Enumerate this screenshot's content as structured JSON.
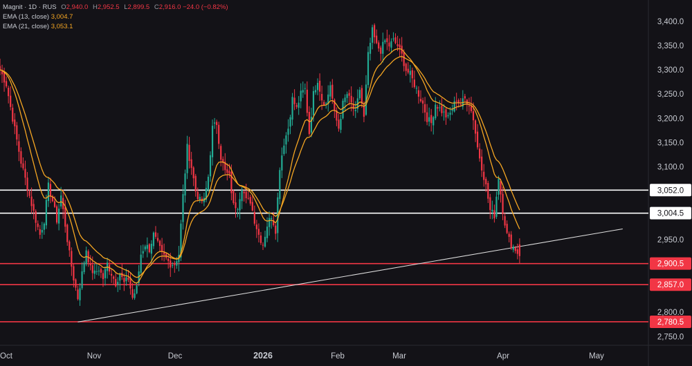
{
  "legend": {
    "symbol": "Magnit · 1D · RUS",
    "open_label": "O",
    "open": "2,940.0",
    "high_label": "H",
    "high": "2,952.5",
    "low_label": "L",
    "low": "2,899.5",
    "close_label": "C",
    "close": "2,916.0",
    "change": "−24.0 (−0.82%)",
    "ema13_label": "EMA (13, close)",
    "ema13_value": "3,004.7",
    "ema21_label": "EMA (21, close)",
    "ema21_value": "3,053.1"
  },
  "colors": {
    "background": "#131217",
    "up": "#22ab94",
    "down": "#f23645",
    "ema": "#f5a623",
    "resistance": "#ffffff",
    "support": "#f23645",
    "trendline": "#e0e0e0"
  },
  "chart_data": {
    "type": "candlestick",
    "title": "",
    "x_tick_labels": [
      "Oct",
      "Nov",
      "Dec",
      "2026",
      "Feb",
      "Mar",
      "Apr",
      "May"
    ],
    "y_tick_labels": [
      "3,400.0",
      "3,350.0",
      "3,300.0",
      "3,250.0",
      "3,200.0",
      "3,150.0",
      "3,100.0",
      "2,950.0",
      "2,800.0",
      "2,750.0"
    ],
    "y_ticks": [
      3400,
      3350,
      3300,
      3250,
      3200,
      3150,
      3100,
      2950,
      2800,
      2750
    ],
    "ylim": [
      2732,
      3444
    ],
    "horizontal_levels": [
      {
        "value": 3052.0,
        "label": "3,052.0",
        "kind": "resistance"
      },
      {
        "value": 3004.5,
        "label": "3,004.5",
        "kind": "resistance"
      },
      {
        "value": 2900.5,
        "label": "2,900.5",
        "kind": "support"
      },
      {
        "value": 2857.0,
        "label": "2,857.0",
        "kind": "support"
      },
      {
        "value": 2780.5,
        "label": "2,780.5",
        "kind": "support"
      }
    ],
    "trendline": {
      "from": {
        "index": 37,
        "price": 2780
      },
      "to": {
        "index": 296,
        "price": 2972
      }
    },
    "price_points": [
      [
        0,
        3300
      ],
      [
        3,
        3270
      ],
      [
        6,
        3200
      ],
      [
        10,
        3110
      ],
      [
        14,
        3040
      ],
      [
        17,
        2990
      ],
      [
        19,
        2960
      ],
      [
        21,
        2990
      ],
      [
        23,
        3060
      ],
      [
        25,
        3030
      ],
      [
        27,
        2990
      ],
      [
        29,
        3040
      ],
      [
        31,
        2980
      ],
      [
        33,
        2920
      ],
      [
        35,
        2870
      ],
      [
        37,
        2830
      ],
      [
        39,
        2880
      ],
      [
        41,
        2930
      ],
      [
        43,
        2890
      ],
      [
        45,
        2880
      ],
      [
        47,
        2890
      ],
      [
        49,
        2870
      ],
      [
        51,
        2900
      ],
      [
        53,
        2880
      ],
      [
        55,
        2860
      ],
      [
        57,
        2880
      ],
      [
        59,
        2860
      ],
      [
        61,
        2870
      ],
      [
        63,
        2830
      ],
      [
        65,
        2850
      ],
      [
        67,
        2920
      ],
      [
        69,
        2940
      ],
      [
        71,
        2930
      ],
      [
        73,
        2960
      ],
      [
        75,
        2940
      ],
      [
        77,
        2920
      ],
      [
        79,
        2910
      ],
      [
        81,
        2900
      ],
      [
        83,
        2900
      ],
      [
        85,
        2920
      ],
      [
        87,
        3040
      ],
      [
        89,
        3140
      ],
      [
        91,
        3100
      ],
      [
        93,
        3050
      ],
      [
        95,
        3030
      ],
      [
        97,
        3030
      ],
      [
        99,
        3080
      ],
      [
        101,
        3180
      ],
      [
        103,
        3190
      ],
      [
        105,
        3120
      ],
      [
        107,
        3090
      ],
      [
        109,
        3080
      ],
      [
        111,
        3020
      ],
      [
        113,
        3020
      ],
      [
        115,
        3060
      ],
      [
        117,
        3030
      ],
      [
        119,
        3030
      ],
      [
        121,
        2990
      ],
      [
        123,
        2960
      ],
      [
        125,
        2940
      ],
      [
        127,
        2980
      ],
      [
        129,
        3000
      ],
      [
        131,
        2970
      ],
      [
        133,
        3100
      ],
      [
        135,
        3150
      ],
      [
        137,
        3180
      ],
      [
        139,
        3240
      ],
      [
        141,
        3220
      ],
      [
        143,
        3250
      ],
      [
        145,
        3260
      ],
      [
        147,
        3170
      ],
      [
        149,
        3250
      ],
      [
        151,
        3280
      ],
      [
        153,
        3240
      ],
      [
        155,
        3230
      ],
      [
        157,
        3270
      ],
      [
        159,
        3210
      ],
      [
        161,
        3180
      ],
      [
        163,
        3230
      ],
      [
        165,
        3250
      ],
      [
        167,
        3230
      ],
      [
        169,
        3210
      ],
      [
        171,
        3260
      ],
      [
        173,
        3200
      ],
      [
        175,
        3330
      ],
      [
        177,
        3380
      ],
      [
        179,
        3350
      ],
      [
        181,
        3340
      ],
      [
        183,
        3360
      ],
      [
        185,
        3350
      ],
      [
        187,
        3360
      ],
      [
        189,
        3350
      ],
      [
        191,
        3330
      ],
      [
        193,
        3300
      ],
      [
        195,
        3290
      ],
      [
        197,
        3270
      ],
      [
        199,
        3250
      ],
      [
        201,
        3230
      ],
      [
        203,
        3200
      ],
      [
        205,
        3190
      ],
      [
        207,
        3230
      ],
      [
        209,
        3220
      ],
      [
        211,
        3210
      ],
      [
        213,
        3200
      ],
      [
        215,
        3220
      ],
      [
        217,
        3240
      ],
      [
        219,
        3230
      ],
      [
        221,
        3240
      ],
      [
        223,
        3230
      ],
      [
        225,
        3200
      ],
      [
        227,
        3140
      ],
      [
        229,
        3100
      ],
      [
        231,
        3060
      ],
      [
        233,
        3010
      ],
      [
        235,
        3000
      ],
      [
        237,
        3080
      ],
      [
        239,
        3010
      ],
      [
        241,
        2960
      ],
      [
        243,
        2940
      ],
      [
        245,
        2930
      ],
      [
        247,
        2916
      ]
    ]
  }
}
